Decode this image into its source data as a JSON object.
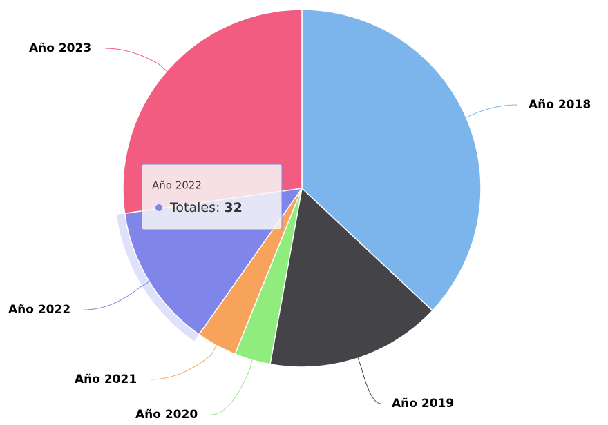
{
  "chart_data": {
    "type": "pie",
    "categories": [
      "Año 2018",
      "Año 2019",
      "Año 2020",
      "Año 2021",
      "Año 2022",
      "Año 2023"
    ],
    "values": [
      91,
      39,
      8,
      9,
      32,
      67
    ],
    "colors": [
      "#7cb5ec",
      "#434348",
      "#90ed7d",
      "#f7a35c",
      "#8085e9",
      "#f15c80"
    ],
    "tooltip": {
      "label": "Totales:"
    }
  }
}
